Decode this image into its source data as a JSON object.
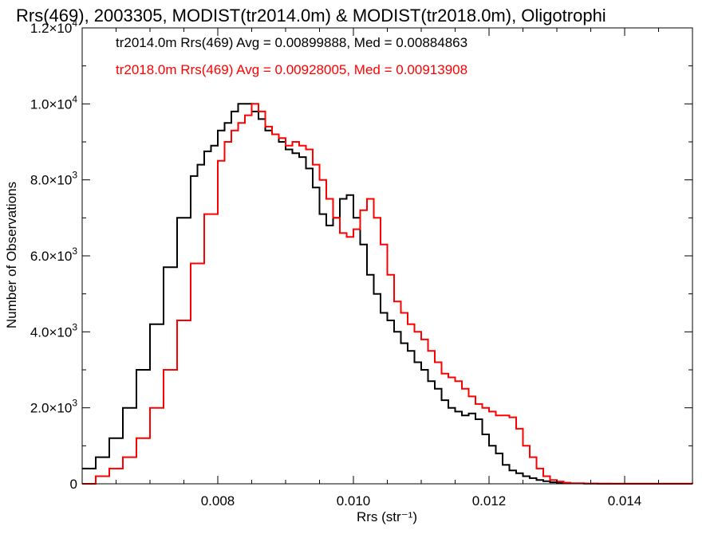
{
  "chart_data": {
    "type": "line",
    "title": "Rrs(469), 2003305, MODIST(tr2014.0m) & MODIST(tr2018.0m), Oligotrophi",
    "xlabel": "Rrs (str⁻¹)",
    "ylabel": "Number of Observations",
    "xlim": [
      0.006,
      0.015
    ],
    "ylim": [
      0,
      12000
    ],
    "x_ticks": [
      {
        "value": 0.008,
        "label": "0.008"
      },
      {
        "value": 0.01,
        "label": "0.010"
      },
      {
        "value": 0.012,
        "label": "0.012"
      },
      {
        "value": 0.014,
        "label": "0.014"
      }
    ],
    "y_ticks": [
      {
        "value": 0,
        "mant": "0",
        "exp": ""
      },
      {
        "value": 2000,
        "mant": "2.0×10",
        "exp": "3"
      },
      {
        "value": 4000,
        "mant": "4.0×10",
        "exp": "3"
      },
      {
        "value": 6000,
        "mant": "6.0×10",
        "exp": "3"
      },
      {
        "value": 8000,
        "mant": "8.0×10",
        "exp": "3"
      },
      {
        "value": 10000,
        "mant": "1.0×10",
        "exp": "4"
      },
      {
        "value": 12000,
        "mant": "1.2×10",
        "exp": "4"
      }
    ],
    "legend": [
      {
        "text": "tr2014.0m Rrs(469) Avg = 0.00899888, Med = 0.00884863",
        "color": "#000000"
      },
      {
        "text": "tr2018.0m Rrs(469) Avg = 0.00928005, Med = 0.00913908",
        "color": "#ff0000"
      }
    ],
    "legend_position": "top-left",
    "grid": false,
    "series": [
      {
        "color": "#000000",
        "x": [
          0.006,
          0.0062,
          0.0064,
          0.0066,
          0.0068,
          0.007,
          0.0072,
          0.0074,
          0.0076,
          0.0077,
          0.0078,
          0.0079,
          0.008,
          0.0081,
          0.0082,
          0.0083,
          0.0084,
          0.0085,
          0.0086,
          0.0087,
          0.0088,
          0.0089,
          0.009,
          0.0091,
          0.0092,
          0.0093,
          0.0094,
          0.0095,
          0.0096,
          0.0097,
          0.0098,
          0.0099,
          0.01,
          0.0101,
          0.0102,
          0.0103,
          0.0104,
          0.0105,
          0.0106,
          0.0107,
          0.0108,
          0.0109,
          0.011,
          0.0111,
          0.0112,
          0.0113,
          0.0114,
          0.0115,
          0.0116,
          0.0117,
          0.0118,
          0.0119,
          0.012,
          0.0121,
          0.0122,
          0.0123,
          0.0124,
          0.0125,
          0.0126,
          0.0127,
          0.0128,
          0.0129,
          0.013,
          0.0131,
          0.0132,
          0.0134,
          0.0136,
          0.014,
          0.015
        ],
        "y": [
          400,
          700,
          1200,
          2000,
          3000,
          4200,
          5700,
          7000,
          8100,
          8400,
          8750,
          8900,
          9300,
          9500,
          9800,
          10000,
          10000,
          9800,
          9600,
          9300,
          9200,
          9000,
          8800,
          8700,
          8600,
          8300,
          7800,
          7100,
          6800,
          7000,
          7500,
          7600,
          7000,
          6300,
          5500,
          5000,
          4500,
          4300,
          4000,
          3700,
          3500,
          3200,
          3000,
          2700,
          2500,
          2200,
          2000,
          1900,
          1800,
          1850,
          1700,
          1300,
          1000,
          800,
          500,
          350,
          280,
          200,
          150,
          100,
          70,
          40,
          20,
          15,
          10,
          5,
          3,
          2,
          0
        ]
      },
      {
        "color": "#ff0000",
        "x": [
          0.006,
          0.0062,
          0.0064,
          0.0066,
          0.0068,
          0.007,
          0.0072,
          0.0074,
          0.0076,
          0.0078,
          0.008,
          0.0081,
          0.0082,
          0.0083,
          0.0084,
          0.0085,
          0.0086,
          0.0087,
          0.0088,
          0.0089,
          0.009,
          0.0091,
          0.0092,
          0.0093,
          0.0094,
          0.0095,
          0.0096,
          0.0097,
          0.0098,
          0.0099,
          0.01,
          0.0101,
          0.0102,
          0.0103,
          0.0104,
          0.0105,
          0.0106,
          0.0107,
          0.0108,
          0.0109,
          0.011,
          0.0111,
          0.0112,
          0.0113,
          0.0114,
          0.0115,
          0.0116,
          0.0117,
          0.0118,
          0.0119,
          0.012,
          0.0121,
          0.0122,
          0.0123,
          0.0124,
          0.0125,
          0.0126,
          0.0127,
          0.0128,
          0.0129,
          0.013,
          0.0131,
          0.0132,
          0.0134,
          0.0136,
          0.0138,
          0.015
        ],
        "y": [
          0,
          200,
          400,
          700,
          1200,
          2000,
          3000,
          4300,
          5800,
          7100,
          8500,
          9000,
          9300,
          9500,
          9700,
          10000,
          9800,
          9400,
          9200,
          9100,
          8900,
          9000,
          8900,
          8800,
          8400,
          8000,
          7500,
          7000,
          6600,
          6500,
          6700,
          7200,
          7500,
          7000,
          6300,
          5500,
          4800,
          4500,
          4200,
          4000,
          3800,
          3500,
          3200,
          2900,
          2800,
          2700,
          2500,
          2300,
          2100,
          2000,
          1900,
          1800,
          1800,
          1750,
          1450,
          1000,
          700,
          400,
          200,
          100,
          60,
          30,
          15,
          8,
          4,
          2,
          0
        ]
      }
    ]
  }
}
